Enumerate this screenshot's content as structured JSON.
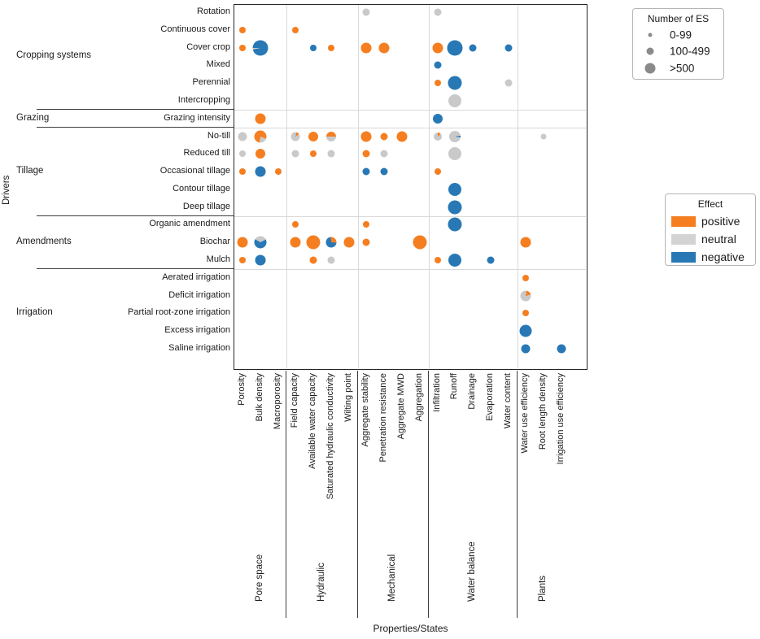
{
  "axis": {
    "x_title": "Properties/States",
    "y_title": "Drivers"
  },
  "colors": {
    "positive": "#f57e20",
    "neutral": "#c9c9c9",
    "negative": "#2878b5",
    "neutral_swatch": "#d3d3d3",
    "size_legend_circle": "#8a8a8a"
  },
  "size_legend": {
    "title": "Number of ES",
    "items": [
      {
        "label": "0-99",
        "d": 5
      },
      {
        "label": "100-499",
        "d": 9
      },
      {
        "label": ">500",
        "d": 13
      }
    ]
  },
  "effect_legend": {
    "title": "Effect",
    "items": [
      {
        "label": "positive",
        "effect": "positive"
      },
      {
        "label": "neutral",
        "effect": "neutral"
      },
      {
        "label": "negative",
        "effect": "negative"
      }
    ]
  },
  "chart_data": {
    "type": "bubble-matrix",
    "row_groups": [
      {
        "label": "Cropping systems",
        "rows": [
          "Rotation",
          "Continuous cover",
          "Cover crop",
          "Mixed",
          "Perennial",
          "Intercropping"
        ]
      },
      {
        "label": "Grazing",
        "rows": [
          "Grazing intensity"
        ]
      },
      {
        "label": "Tillage",
        "rows": [
          "No-till",
          "Reduced till",
          "Occasional tillage",
          "Contour tillage",
          "Deep tillage"
        ]
      },
      {
        "label": "Amendments",
        "rows": [
          "Organic amendment",
          "Biochar",
          "Mulch"
        ]
      },
      {
        "label": "Irrigation",
        "rows": [
          "Aerated irrigation",
          "Deficit irrigation",
          "Partial root-zone irrigation",
          "Excess irrigation",
          "Saline irrigation"
        ]
      }
    ],
    "col_groups": [
      {
        "label": "Pore space",
        "cols": [
          "Porosity",
          "Bulk density",
          "Macroporosity"
        ]
      },
      {
        "label": "Hydraulic",
        "cols": [
          "Field capacity",
          "Available water capacity",
          "Saturated hydraulic conductivity",
          "Wilting point"
        ]
      },
      {
        "label": "Mechanical",
        "cols": [
          "Aggregate stability",
          "Penetration resistance",
          "Aggregate MWD",
          "Aggregation"
        ]
      },
      {
        "label": "Water balance",
        "cols": [
          "Infiltration",
          "Runoff",
          "Drainage",
          "Evaporation",
          "Water content"
        ]
      },
      {
        "label": "Plants",
        "cols": [
          "Water use efficiency",
          "Root length density",
          "Irrigation use efficiency"
        ]
      }
    ],
    "size_meaning": "bubble diameter encodes Number of ES: 0-99 small, 100-499 medium, >500 large",
    "points": [
      {
        "row": "Rotation",
        "col": "Aggregate stability",
        "d": 9,
        "seg": [
          [
            "neutral",
            100
          ]
        ]
      },
      {
        "row": "Rotation",
        "col": "Infiltration",
        "d": 9,
        "seg": [
          [
            "neutral",
            100
          ]
        ]
      },
      {
        "row": "Continuous cover",
        "col": "Porosity",
        "d": 8,
        "seg": [
          [
            "positive",
            100
          ]
        ]
      },
      {
        "row": "Continuous cover",
        "col": "Field capacity",
        "d": 8,
        "seg": [
          [
            "positive",
            100
          ]
        ]
      },
      {
        "row": "Cover crop",
        "col": "Porosity",
        "d": 8,
        "seg": [
          [
            "positive",
            100
          ]
        ]
      },
      {
        "row": "Cover crop",
        "col": "Bulk density",
        "d": 19,
        "from": 258,
        "seg": [
          [
            "neutral",
            3
          ],
          [
            "negative",
            97
          ]
        ]
      },
      {
        "row": "Cover crop",
        "col": "Available water capacity",
        "d": 8,
        "seg": [
          [
            "negative",
            100
          ]
        ]
      },
      {
        "row": "Cover crop",
        "col": "Saturated hydraulic conductivity",
        "d": 8,
        "seg": [
          [
            "positive",
            100
          ]
        ]
      },
      {
        "row": "Cover crop",
        "col": "Aggregate stability",
        "d": 13,
        "seg": [
          [
            "positive",
            100
          ]
        ]
      },
      {
        "row": "Cover crop",
        "col": "Penetration resistance",
        "d": 13,
        "seg": [
          [
            "positive",
            100
          ]
        ]
      },
      {
        "row": "Cover crop",
        "col": "Infiltration",
        "d": 13,
        "seg": [
          [
            "positive",
            100
          ]
        ]
      },
      {
        "row": "Cover crop",
        "col": "Runoff",
        "d": 19,
        "seg": [
          [
            "negative",
            100
          ]
        ]
      },
      {
        "row": "Cover crop",
        "col": "Drainage",
        "d": 9,
        "seg": [
          [
            "negative",
            100
          ]
        ]
      },
      {
        "row": "Cover crop",
        "col": "Water content",
        "d": 9,
        "seg": [
          [
            "negative",
            100
          ]
        ]
      },
      {
        "row": "Mixed",
        "col": "Infiltration",
        "d": 9,
        "seg": [
          [
            "negative",
            100
          ]
        ]
      },
      {
        "row": "Perennial",
        "col": "Infiltration",
        "d": 8,
        "seg": [
          [
            "positive",
            100
          ]
        ]
      },
      {
        "row": "Perennial",
        "col": "Runoff",
        "d": 17,
        "seg": [
          [
            "negative",
            100
          ]
        ]
      },
      {
        "row": "Perennial",
        "col": "Water content",
        "d": 9,
        "seg": [
          [
            "neutral",
            100
          ]
        ]
      },
      {
        "row": "Intercropping",
        "col": "Runoff",
        "d": 16,
        "seg": [
          [
            "neutral",
            100
          ]
        ]
      },
      {
        "row": "Grazing intensity",
        "col": "Bulk density",
        "d": 13,
        "seg": [
          [
            "positive",
            100
          ]
        ]
      },
      {
        "row": "Grazing intensity",
        "col": "Infiltration",
        "d": 12,
        "seg": [
          [
            "negative",
            100
          ]
        ]
      },
      {
        "row": "No-till",
        "col": "Porosity",
        "d": 11,
        "seg": [
          [
            "neutral",
            100
          ]
        ]
      },
      {
        "row": "No-till",
        "col": "Bulk density",
        "d": 15,
        "from": 110,
        "seg": [
          [
            "neutral",
            22
          ],
          [
            "positive",
            78
          ]
        ]
      },
      {
        "row": "No-till",
        "col": "Field capacity",
        "d": 11,
        "from": 15,
        "seg": [
          [
            "positive",
            11
          ],
          [
            "neutral",
            89
          ]
        ]
      },
      {
        "row": "No-till",
        "col": "Available water capacity",
        "d": 12,
        "seg": [
          [
            "positive",
            100
          ]
        ]
      },
      {
        "row": "No-till",
        "col": "Saturated hydraulic conductivity",
        "d": 12,
        "from": 270,
        "seg": [
          [
            "positive",
            50
          ],
          [
            "neutral",
            50
          ]
        ]
      },
      {
        "row": "No-till",
        "col": "Aggregate stability",
        "d": 13,
        "seg": [
          [
            "positive",
            100
          ]
        ]
      },
      {
        "row": "No-till",
        "col": "Penetration resistance",
        "d": 9,
        "seg": [
          [
            "positive",
            100
          ]
        ]
      },
      {
        "row": "No-till",
        "col": "Aggregate MWD",
        "d": 13,
        "seg": [
          [
            "positive",
            100
          ]
        ]
      },
      {
        "row": "No-till",
        "col": "Infiltration",
        "d": 10,
        "from": 0,
        "seg": [
          [
            "positive",
            13
          ],
          [
            "neutral",
            87
          ]
        ]
      },
      {
        "row": "No-till",
        "col": "Runoff",
        "d": 14,
        "from": 80,
        "seg": [
          [
            "negative",
            5
          ],
          [
            "neutral",
            95
          ]
        ]
      },
      {
        "row": "No-till",
        "col": "Root length density",
        "d": 7,
        "seg": [
          [
            "neutral",
            100
          ]
        ]
      },
      {
        "row": "Reduced till",
        "col": "Porosity",
        "d": 8,
        "seg": [
          [
            "neutral",
            100
          ]
        ]
      },
      {
        "row": "Reduced till",
        "col": "Bulk density",
        "d": 12,
        "seg": [
          [
            "positive",
            100
          ]
        ]
      },
      {
        "row": "Reduced till",
        "col": "Field capacity",
        "d": 9,
        "seg": [
          [
            "neutral",
            100
          ]
        ]
      },
      {
        "row": "Reduced till",
        "col": "Available water capacity",
        "d": 8,
        "seg": [
          [
            "positive",
            100
          ]
        ]
      },
      {
        "row": "Reduced till",
        "col": "Saturated hydraulic conductivity",
        "d": 9,
        "seg": [
          [
            "neutral",
            100
          ]
        ]
      },
      {
        "row": "Reduced till",
        "col": "Aggregate stability",
        "d": 9,
        "seg": [
          [
            "positive",
            100
          ]
        ]
      },
      {
        "row": "Reduced till",
        "col": "Penetration resistance",
        "d": 9,
        "seg": [
          [
            "neutral",
            100
          ]
        ]
      },
      {
        "row": "Reduced till",
        "col": "Runoff",
        "d": 16,
        "seg": [
          [
            "neutral",
            100
          ]
        ]
      },
      {
        "row": "Occasional tillage",
        "col": "Porosity",
        "d": 8,
        "seg": [
          [
            "positive",
            100
          ]
        ]
      },
      {
        "row": "Occasional tillage",
        "col": "Bulk density",
        "d": 13,
        "seg": [
          [
            "negative",
            100
          ]
        ]
      },
      {
        "row": "Occasional tillage",
        "col": "Macroporosity",
        "d": 8,
        "seg": [
          [
            "positive",
            100
          ]
        ]
      },
      {
        "row": "Occasional tillage",
        "col": "Aggregate stability",
        "d": 9,
        "seg": [
          [
            "negative",
            100
          ]
        ]
      },
      {
        "row": "Occasional tillage",
        "col": "Penetration resistance",
        "d": 9,
        "seg": [
          [
            "negative",
            100
          ]
        ]
      },
      {
        "row": "Occasional tillage",
        "col": "Infiltration",
        "d": 8,
        "seg": [
          [
            "positive",
            100
          ]
        ]
      },
      {
        "row": "Contour tillage",
        "col": "Runoff",
        "d": 16,
        "seg": [
          [
            "negative",
            100
          ]
        ]
      },
      {
        "row": "Deep tillage",
        "col": "Runoff",
        "d": 17,
        "seg": [
          [
            "negative",
            100
          ]
        ]
      },
      {
        "row": "Organic amendment",
        "col": "Field capacity",
        "d": 8,
        "seg": [
          [
            "positive",
            100
          ]
        ]
      },
      {
        "row": "Organic amendment",
        "col": "Aggregate stability",
        "d": 8,
        "seg": [
          [
            "positive",
            100
          ]
        ]
      },
      {
        "row": "Organic amendment",
        "col": "Runoff",
        "d": 17,
        "seg": [
          [
            "negative",
            100
          ]
        ]
      },
      {
        "row": "Biochar",
        "col": "Porosity",
        "d": 13,
        "seg": [
          [
            "positive",
            100
          ]
        ]
      },
      {
        "row": "Biochar",
        "col": "Bulk density",
        "d": 15,
        "from": 300,
        "seg": [
          [
            "neutral",
            34
          ],
          [
            "negative",
            66
          ]
        ]
      },
      {
        "row": "Biochar",
        "col": "Field capacity",
        "d": 13,
        "seg": [
          [
            "positive",
            100
          ]
        ]
      },
      {
        "row": "Biochar",
        "col": "Available water capacity",
        "d": 17,
        "seg": [
          [
            "positive",
            100
          ]
        ]
      },
      {
        "row": "Biochar",
        "col": "Saturated hydraulic conductivity",
        "d": 13,
        "from": 355,
        "seg": [
          [
            "positive",
            28
          ],
          [
            "negative",
            72
          ]
        ]
      },
      {
        "row": "Biochar",
        "col": "Wilting point",
        "d": 13,
        "seg": [
          [
            "positive",
            100
          ]
        ]
      },
      {
        "row": "Biochar",
        "col": "Aggregate stability",
        "d": 9,
        "seg": [
          [
            "positive",
            100
          ]
        ]
      },
      {
        "row": "Biochar",
        "col": "Aggregation",
        "d": 17,
        "seg": [
          [
            "positive",
            100
          ]
        ]
      },
      {
        "row": "Biochar",
        "col": "Water use efficiency",
        "d": 13,
        "seg": [
          [
            "positive",
            100
          ]
        ]
      },
      {
        "row": "Mulch",
        "col": "Porosity",
        "d": 8,
        "seg": [
          [
            "positive",
            100
          ]
        ]
      },
      {
        "row": "Mulch",
        "col": "Bulk density",
        "d": 13,
        "seg": [
          [
            "negative",
            100
          ]
        ]
      },
      {
        "row": "Mulch",
        "col": "Available water capacity",
        "d": 9,
        "seg": [
          [
            "positive",
            100
          ]
        ]
      },
      {
        "row": "Mulch",
        "col": "Saturated hydraulic conductivity",
        "d": 9,
        "seg": [
          [
            "neutral",
            100
          ]
        ]
      },
      {
        "row": "Mulch",
        "col": "Infiltration",
        "d": 8,
        "seg": [
          [
            "positive",
            100
          ]
        ]
      },
      {
        "row": "Mulch",
        "col": "Runoff",
        "d": 16,
        "seg": [
          [
            "negative",
            100
          ]
        ]
      },
      {
        "row": "Mulch",
        "col": "Evaporation",
        "d": 9,
        "seg": [
          [
            "negative",
            100
          ]
        ]
      },
      {
        "row": "Aerated irrigation",
        "col": "Water use efficiency",
        "d": 8,
        "seg": [
          [
            "positive",
            100
          ]
        ]
      },
      {
        "row": "Deficit irrigation",
        "col": "Water use efficiency",
        "d": 13,
        "from": 10,
        "seg": [
          [
            "positive",
            18
          ],
          [
            "neutral",
            82
          ]
        ]
      },
      {
        "row": "Partial root-zone irrigation",
        "col": "Water use efficiency",
        "d": 8,
        "seg": [
          [
            "positive",
            100
          ]
        ]
      },
      {
        "row": "Excess irrigation",
        "col": "Water use efficiency",
        "d": 15,
        "seg": [
          [
            "negative",
            100
          ]
        ]
      },
      {
        "row": "Saline irrigation",
        "col": "Water use efficiency",
        "d": 11,
        "seg": [
          [
            "negative",
            100
          ]
        ]
      },
      {
        "row": "Saline irrigation",
        "col": "Irrigation use efficiency",
        "d": 11,
        "seg": [
          [
            "negative",
            100
          ]
        ]
      }
    ]
  }
}
